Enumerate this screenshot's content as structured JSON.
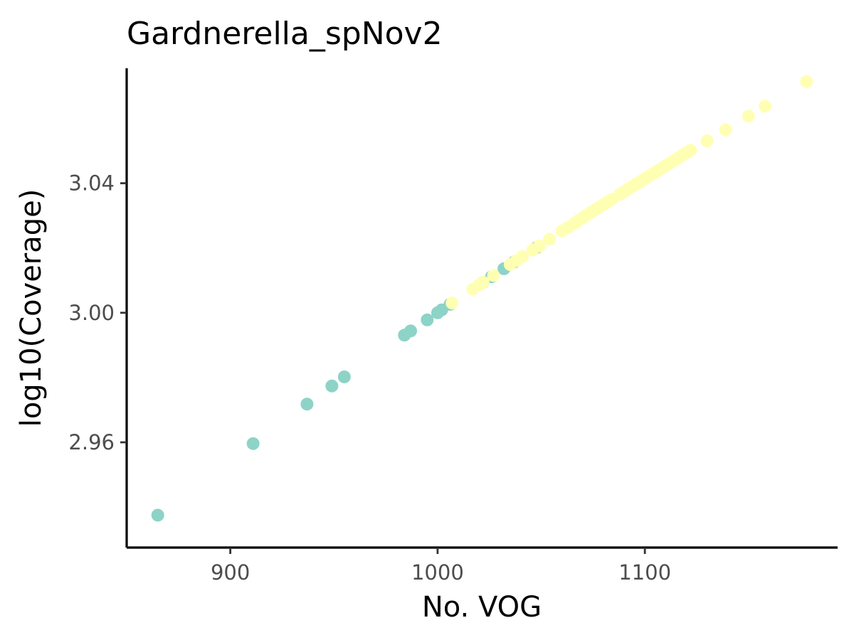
{
  "chart_data": {
    "type": "scatter",
    "title": "Gardnerella_spNov2",
    "xlabel": "No. VOG",
    "ylabel": "log10(Coverage)",
    "xlim": [
      850,
      1193
    ],
    "ylim": [
      2.9275,
      3.0755
    ],
    "x_ticks": [
      {
        "value": 900,
        "label": "900"
      },
      {
        "value": 1000,
        "label": "1000"
      },
      {
        "value": 1100,
        "label": "1100"
      }
    ],
    "y_ticks": [
      {
        "value": 2.96,
        "label": "2.96"
      },
      {
        "value": 3.0,
        "label": "3.00"
      },
      {
        "value": 3.04,
        "label": "3.04"
      }
    ],
    "grid": false,
    "legend": "none",
    "series": [
      {
        "color": "#8dd3c7",
        "points": [
          [
            865,
            2.9375
          ],
          [
            911,
            2.9596
          ],
          [
            937,
            2.9718
          ],
          [
            949,
            2.9774
          ],
          [
            955,
            2.9802
          ],
          [
            984,
            2.9931
          ],
          [
            987,
            2.9944
          ],
          [
            995,
            2.9978
          ],
          [
            1000,
            3.0
          ],
          [
            1002,
            3.0009
          ],
          [
            1006,
            3.0026
          ],
          [
            1022,
            3.0094
          ],
          [
            1026,
            3.0111
          ],
          [
            1032,
            3.0136
          ],
          [
            1037,
            3.0157
          ],
          [
            1048,
            3.0202
          ]
        ]
      },
      {
        "color": "#ffffb3",
        "points": [
          [
            1007,
            3.003
          ],
          [
            1017,
            3.0073
          ],
          [
            1020,
            3.0086
          ],
          [
            1022,
            3.0094
          ],
          [
            1027,
            3.0115
          ],
          [
            1035,
            3.0149
          ],
          [
            1038,
            3.0161
          ],
          [
            1041,
            3.0174
          ],
          [
            1046,
            3.0194
          ],
          [
            1049,
            3.0206
          ],
          [
            1054,
            3.0227
          ],
          [
            1060,
            3.0253
          ],
          [
            1063,
            3.0264
          ],
          [
            1066,
            3.0276
          ],
          [
            1068,
            3.0285
          ],
          [
            1070,
            3.0293
          ],
          [
            1072,
            3.0302
          ],
          [
            1074,
            3.031
          ],
          [
            1076,
            3.0318
          ],
          [
            1078,
            3.0326
          ],
          [
            1080,
            3.0334
          ],
          [
            1082,
            3.0342
          ],
          [
            1084,
            3.035
          ],
          [
            1088,
            3.0366
          ],
          [
            1090,
            3.0374
          ],
          [
            1092,
            3.0382
          ],
          [
            1094,
            3.039
          ],
          [
            1096,
            3.0398
          ],
          [
            1098,
            3.0406
          ],
          [
            1100,
            3.0414
          ],
          [
            1102,
            3.0422
          ],
          [
            1104,
            3.043
          ],
          [
            1106,
            3.0438
          ],
          [
            1108,
            3.0446
          ],
          [
            1110,
            3.0454
          ],
          [
            1112,
            3.0462
          ],
          [
            1114,
            3.047
          ],
          [
            1116,
            3.0478
          ],
          [
            1118,
            3.0486
          ],
          [
            1120,
            3.0494
          ],
          [
            1122,
            3.0502
          ],
          [
            1130,
            3.0531
          ],
          [
            1139,
            3.0565
          ],
          [
            1150,
            3.0607
          ],
          [
            1158,
            3.0638
          ],
          [
            1178,
            3.0714
          ]
        ]
      }
    ]
  }
}
